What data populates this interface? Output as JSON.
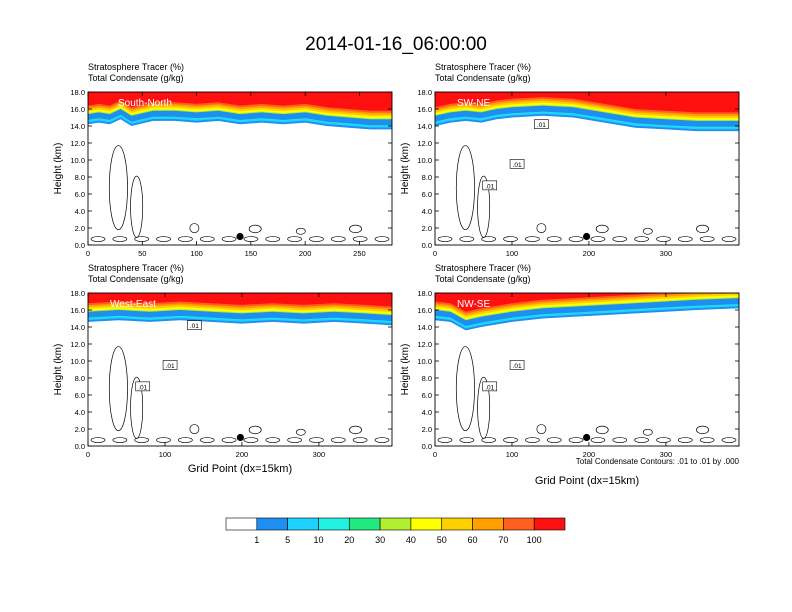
{
  "figure": {
    "title": "2014-01-16_06:00:00",
    "contour_note": "Total Condensate Contours: .01 to .01 by .000",
    "xlabel": "Grid Point (dx=15km)",
    "ylabel": "Height (km)"
  },
  "colorbar": {
    "labels": [
      "1",
      "5",
      "10",
      "20",
      "30",
      "40",
      "50",
      "60",
      "70",
      "100"
    ],
    "colors": [
      "#ffffff",
      "#1e8ff0",
      "#1fd1ff",
      "#22f0e0",
      "#22e880",
      "#22e61e",
      "#b0f030",
      "#ffff00",
      "#ffd000",
      "#ffa000",
      "#ff6020",
      "#ff1010"
    ]
  },
  "chart_data": [
    {
      "type": "heatmap",
      "title": "Stratosphere Tracer (%)",
      "subtitle": "Total Condensate (g/kg)",
      "title_units": "(%)",
      "subtitle_units": "(g/kg)",
      "title_text": "Stratosphere Tracer",
      "subtitle_text": "Total Condensate",
      "label": "South-North",
      "xlim": [
        0,
        280
      ],
      "ylim": [
        0,
        18
      ],
      "xticks": [
        "0",
        "50",
        "100",
        "150",
        "200",
        "250"
      ],
      "xtick_values": [
        0,
        50,
        100,
        150,
        200,
        250
      ],
      "yticks": [
        "0.0",
        "2.0",
        "4.0",
        "6.0",
        "8.0",
        "10.0",
        "12.0",
        "14.0",
        "16.0",
        "18.0"
      ],
      "marker_x": 140,
      "marker_y": 1.0,
      "tropopause": [
        [
          0,
          15.2
        ],
        [
          10,
          15.4
        ],
        [
          20,
          15.2
        ],
        [
          30,
          15.8
        ],
        [
          40,
          15.0
        ],
        [
          60,
          15.6
        ],
        [
          80,
          15.6
        ],
        [
          100,
          15.4
        ],
        [
          120,
          15.6
        ],
        [
          140,
          15.2
        ],
        [
          160,
          15.4
        ],
        [
          180,
          15.2
        ],
        [
          200,
          15.4
        ],
        [
          220,
          15.0
        ],
        [
          240,
          14.8
        ],
        [
          260,
          14.6
        ],
        [
          280,
          14.6
        ]
      ]
    },
    {
      "type": "heatmap",
      "title_text": "Stratosphere Tracer",
      "title_units": "(%)",
      "subtitle_text": "Total Condensate",
      "subtitle_units": "(g/kg)",
      "label": "SW-NE",
      "xlim": [
        0,
        395
      ],
      "ylim": [
        0,
        18
      ],
      "xticks": [
        "0",
        "100",
        "200",
        "300"
      ],
      "xtick_values": [
        0,
        100,
        200,
        300
      ],
      "yticks": [
        "0.0",
        "2.0",
        "4.0",
        "6.0",
        "8.0",
        "10.0",
        "12.0",
        "14.0",
        "16.0",
        "18.0"
      ],
      "marker_x": 197,
      "marker_y": 1.0,
      "contour_labels": [
        ".01",
        ".01",
        ".01"
      ],
      "tropopause": [
        [
          0,
          15.0
        ],
        [
          20,
          15.4
        ],
        [
          40,
          15.6
        ],
        [
          60,
          15.4
        ],
        [
          80,
          15.8
        ],
        [
          100,
          16.0
        ],
        [
          140,
          16.2
        ],
        [
          180,
          16.0
        ],
        [
          220,
          15.4
        ],
        [
          260,
          14.8
        ],
        [
          300,
          14.6
        ],
        [
          340,
          14.4
        ],
        [
          395,
          14.4
        ]
      ]
    },
    {
      "type": "heatmap",
      "title_text": "Stratosphere Tracer",
      "title_units": "(%)",
      "subtitle_text": "Total Condensate",
      "subtitle_units": "(g/kg)",
      "label": "West-East",
      "xlim": [
        0,
        395
      ],
      "ylim": [
        0,
        18
      ],
      "xticks": [
        "0",
        "100",
        "200",
        "300"
      ],
      "xtick_values": [
        0,
        100,
        200,
        300
      ],
      "yticks": [
        "0.0",
        "2.0",
        "4.0",
        "6.0",
        "8.0",
        "10.0",
        "12.0",
        "14.0",
        "16.0",
        "18.0"
      ],
      "marker_x": 198,
      "marker_y": 1.0,
      "contour_labels": [
        ".01",
        ".01",
        ".01"
      ],
      "tropopause": [
        [
          0,
          15.6
        ],
        [
          40,
          15.8
        ],
        [
          80,
          15.6
        ],
        [
          120,
          15.8
        ],
        [
          160,
          15.6
        ],
        [
          200,
          15.4
        ],
        [
          240,
          15.6
        ],
        [
          280,
          15.4
        ],
        [
          320,
          15.6
        ],
        [
          360,
          15.4
        ],
        [
          395,
          15.2
        ]
      ]
    },
    {
      "type": "heatmap",
      "title_text": "Stratosphere Tracer",
      "title_units": "(%)",
      "subtitle_text": "Total Condensate",
      "subtitle_units": "(g/kg)",
      "label": "NW-SE",
      "xlim": [
        0,
        395
      ],
      "ylim": [
        0,
        18
      ],
      "xticks": [
        "0",
        "100",
        "200",
        "300"
      ],
      "xtick_values": [
        0,
        100,
        200,
        300
      ],
      "yticks": [
        "0.0",
        "2.0",
        "4.0",
        "6.0",
        "8.0",
        "10.0",
        "12.0",
        "14.0",
        "16.0",
        "18.0"
      ],
      "marker_x": 197,
      "marker_y": 1.0,
      "contour_labels": [
        ".01",
        ".01"
      ],
      "tropopause": [
        [
          0,
          15.8
        ],
        [
          20,
          15.6
        ],
        [
          40,
          14.6
        ],
        [
          60,
          15.0
        ],
        [
          100,
          15.6
        ],
        [
          140,
          16.0
        ],
        [
          180,
          16.2
        ],
        [
          220,
          16.4
        ],
        [
          260,
          16.6
        ],
        [
          300,
          16.8
        ],
        [
          340,
          17.0
        ],
        [
          395,
          17.2
        ]
      ]
    }
  ]
}
